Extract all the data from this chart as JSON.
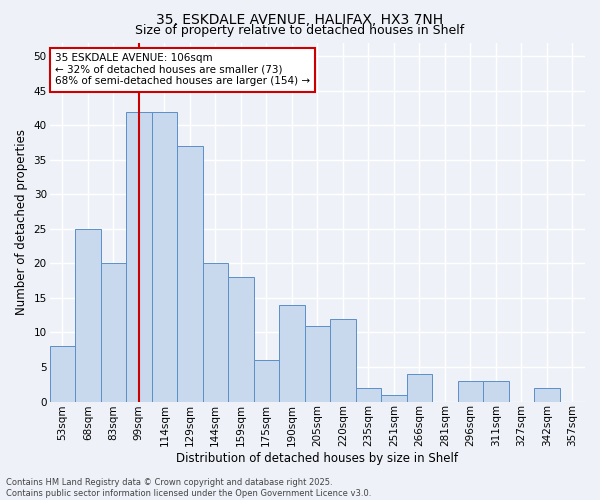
{
  "title_line1": "35, ESKDALE AVENUE, HALIFAX, HX3 7NH",
  "title_line2": "Size of property relative to detached houses in Shelf",
  "xlabel": "Distribution of detached houses by size in Shelf",
  "ylabel": "Number of detached properties",
  "categories": [
    "53sqm",
    "68sqm",
    "83sqm",
    "99sqm",
    "114sqm",
    "129sqm",
    "144sqm",
    "159sqm",
    "175sqm",
    "190sqm",
    "205sqm",
    "220sqm",
    "235sqm",
    "251sqm",
    "266sqm",
    "281sqm",
    "296sqm",
    "311sqm",
    "327sqm",
    "342sqm",
    "357sqm"
  ],
  "values": [
    8,
    25,
    20,
    42,
    42,
    37,
    20,
    18,
    6,
    14,
    11,
    12,
    2,
    1,
    4,
    0,
    3,
    3,
    0,
    2,
    0
  ],
  "bar_color": "#c9d9ed",
  "bar_edge_color": "#5b8fc9",
  "bar_width": 1.0,
  "ylim": [
    0,
    52
  ],
  "yticks": [
    0,
    5,
    10,
    15,
    20,
    25,
    30,
    35,
    40,
    45,
    50
  ],
  "red_line_x": 3.0,
  "red_line_color": "#cc0000",
  "annotation_text": "35 ESKDALE AVENUE: 106sqm\n← 32% of detached houses are smaller (73)\n68% of semi-detached houses are larger (154) →",
  "annotation_box_color": "#ffffff",
  "annotation_box_edge": "#cc0000",
  "footer_text": "Contains HM Land Registry data © Crown copyright and database right 2025.\nContains public sector information licensed under the Open Government Licence v3.0.",
  "background_color": "#eef2f8",
  "grid_color": "#ffffff",
  "title_fontsize": 10,
  "subtitle_fontsize": 9,
  "tick_fontsize": 7.5,
  "xlabel_fontsize": 8.5,
  "ylabel_fontsize": 8.5,
  "annotation_fontsize": 7.5,
  "footer_fontsize": 6
}
